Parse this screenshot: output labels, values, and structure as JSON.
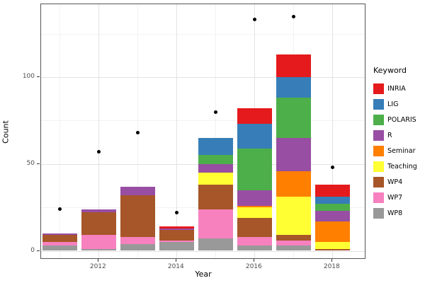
{
  "figure": {
    "background": "#ffffff",
    "panel_border_color": "#555555",
    "gridline_major_color": "#e3e3e3",
    "gridline_minor_color": "#f2f2f2",
    "tick_label_color": "#4d4d4d",
    "point_color": "#000000"
  },
  "chart_data": {
    "type": "bar",
    "stacked": true,
    "title": "",
    "xlabel": "Year",
    "ylabel": "Count",
    "legend_title": "Keyword",
    "legend_position": "right",
    "grid": true,
    "x": [
      2011,
      2012,
      2013,
      2014,
      2015,
      2016,
      2017,
      2018
    ],
    "series": [
      {
        "name": "INRIA",
        "color": "#e41a1c",
        "values": [
          0,
          0,
          0,
          1,
          0,
          9,
          13,
          7
        ]
      },
      {
        "name": "LIG",
        "color": "#377eb8",
        "values": [
          0,
          0,
          0,
          0,
          10,
          14,
          12,
          4
        ]
      },
      {
        "name": "POLARIS",
        "color": "#4daf4a",
        "values": [
          0,
          0,
          0,
          0,
          5,
          24,
          23,
          4
        ]
      },
      {
        "name": "R",
        "color": "#984ea3",
        "values": [
          1,
          2,
          5,
          1,
          5,
          9,
          19,
          6
        ]
      },
      {
        "name": "Seminar",
        "color": "#ff7f00",
        "values": [
          0,
          0,
          0,
          0,
          0,
          1,
          15,
          12
        ]
      },
      {
        "name": "Teaching",
        "color": "#ffff33",
        "values": [
          0,
          0,
          0,
          0,
          7,
          6,
          22,
          4
        ]
      },
      {
        "name": "WP4",
        "color": "#a65628",
        "values": [
          4,
          13,
          24,
          6,
          14,
          11,
          3,
          1
        ]
      },
      {
        "name": "WP7",
        "color": "#f781bf",
        "values": [
          2,
          8,
          4,
          1,
          17,
          5,
          3,
          0
        ]
      },
      {
        "name": "WP8",
        "color": "#999999",
        "values": [
          3,
          1,
          4,
          5,
          7,
          3,
          3,
          0
        ]
      }
    ],
    "points": {
      "name": "yearly-total-dots",
      "color": "#000000",
      "values": [
        24,
        57,
        68,
        22,
        80,
        133,
        135,
        48
      ]
    },
    "stack_order_bottom_to_top": [
      "WP8",
      "WP7",
      "WP4",
      "Teaching",
      "Seminar",
      "R",
      "POLARIS",
      "LIG",
      "INRIA"
    ],
    "y_major_ticks": [
      0,
      50,
      100
    ],
    "y_tick_labels": [
      "0",
      "50",
      "100"
    ],
    "y_minor_gridlines": [
      25,
      75,
      125
    ],
    "x_major_ticks": [
      2012,
      2014,
      2016,
      2018
    ],
    "x_tick_labels": [
      "2012",
      "2014",
      "2016",
      "2018"
    ],
    "x_minor_gridlines": [
      2011,
      2013,
      2015,
      2017
    ],
    "ylim": [
      -5,
      142
    ],
    "bar_width_years": 0.9
  }
}
